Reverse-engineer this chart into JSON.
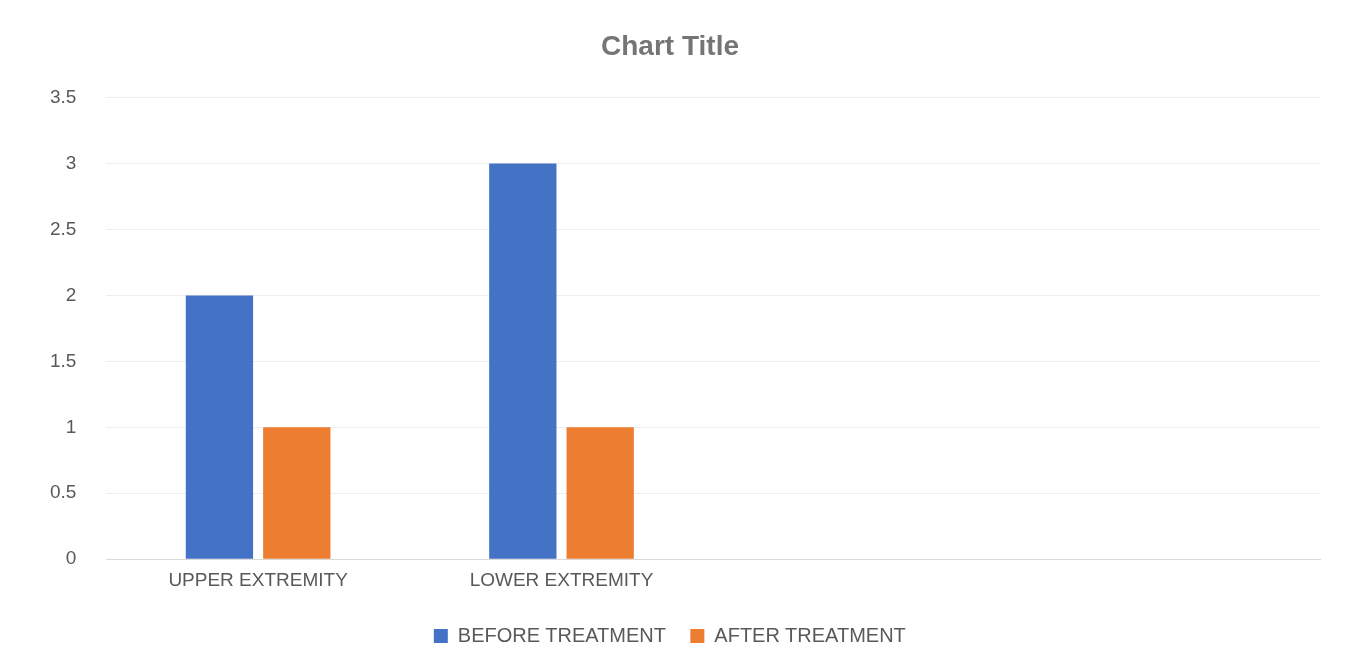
{
  "chart_data": {
    "type": "bar",
    "title": "Chart Title",
    "categories": [
      "UPPER EXTREMITY",
      "LOWER EXTREMITY",
      null,
      null
    ],
    "series": [
      {
        "name": "BEFORE TREATMENT",
        "color": "#4472c4",
        "values": [
          2,
          3,
          null,
          null
        ]
      },
      {
        "name": "AFTER TREATMENT",
        "color": "#ed7d31",
        "values": [
          1,
          1,
          null,
          null
        ]
      }
    ],
    "ylim": [
      0,
      3.5
    ],
    "yticks": [
      0,
      0.5,
      1,
      1.5,
      2,
      2.5,
      3,
      3.5
    ],
    "grid": "y",
    "legend": "bottom"
  }
}
